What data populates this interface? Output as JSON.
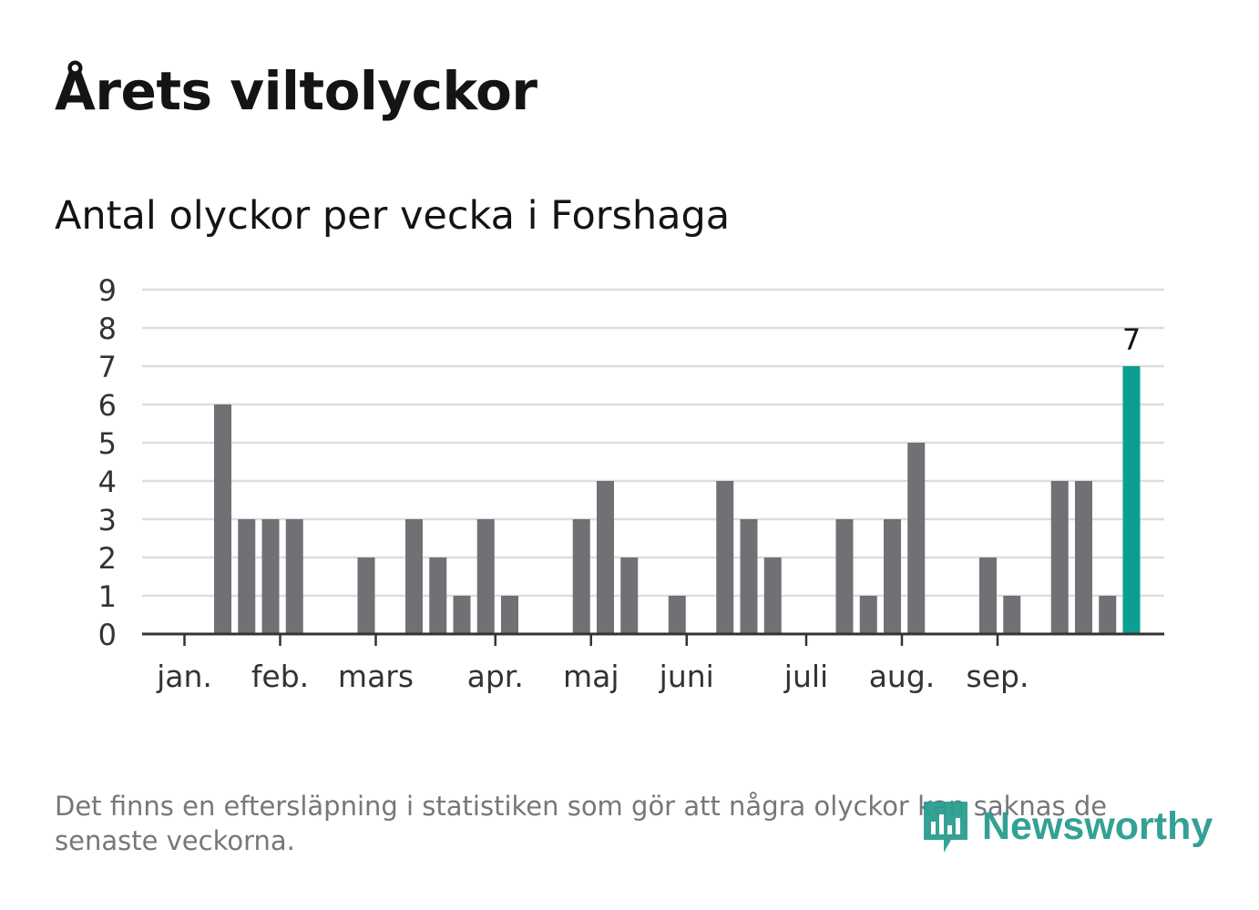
{
  "title": "Årets viltolyckor",
  "subtitle": "Antal olyckor per vecka i Forshaga",
  "footnote": "Det finns en eftersläpning i statistiken som gör att några olyckor kan saknas de senaste veckorna.",
  "brand": "Newsworthy",
  "colors": {
    "bar": "#717075",
    "highlight": "#0a9f92",
    "grid": "#dddddd",
    "axis": "#333333",
    "text": "#333333",
    "brand": "#2a9d90"
  },
  "chart_data": {
    "type": "bar",
    "title": "Antal olyckor per vecka i Forshaga",
    "xlabel": "",
    "ylabel": "",
    "ylim": [
      0,
      9
    ],
    "yticks": [
      0,
      1,
      2,
      3,
      4,
      5,
      6,
      7,
      8,
      9
    ],
    "weeks": [
      1,
      2,
      3,
      4,
      5,
      6,
      7,
      8,
      9,
      10,
      11,
      12,
      13,
      14,
      15,
      16,
      17,
      18,
      19,
      20,
      21,
      22,
      23,
      24,
      25,
      26,
      27,
      28,
      29,
      30,
      31,
      32,
      33,
      34,
      35,
      36,
      37,
      38,
      39,
      40,
      41,
      42
    ],
    "values": [
      0,
      0,
      6,
      3,
      3,
      3,
      0,
      0,
      2,
      0,
      3,
      2,
      1,
      3,
      1,
      0,
      0,
      3,
      4,
      2,
      0,
      1,
      0,
      4,
      3,
      2,
      0,
      0,
      3,
      1,
      3,
      5,
      0,
      0,
      2,
      1,
      0,
      4,
      4,
      1,
      7,
      0
    ],
    "highlight_index": 40,
    "highlight_label": "7",
    "month_ticks": [
      {
        "label": "jan.",
        "week": 1.4
      },
      {
        "label": "feb.",
        "week": 5.4
      },
      {
        "label": "mars",
        "week": 9.4
      },
      {
        "label": "apr.",
        "week": 14.4
      },
      {
        "label": "maj",
        "week": 18.4
      },
      {
        "label": "juni",
        "week": 22.4
      },
      {
        "label": "juli",
        "week": 27.4
      },
      {
        "label": "aug.",
        "week": 31.4
      },
      {
        "label": "sep.",
        "week": 35.4
      }
    ],
    "grid": true,
    "legend": "none"
  }
}
